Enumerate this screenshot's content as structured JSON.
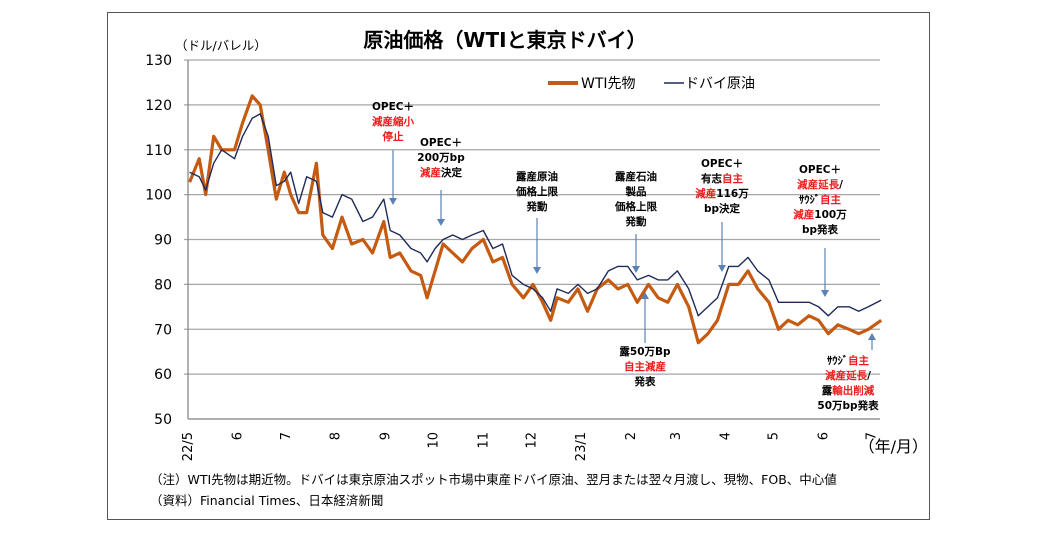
{
  "chart_data": {
    "type": "line",
    "title": "原油価格（WTIと東京ドバイ）",
    "ylabel": "（ドル/バレル）",
    "xlabel": "（年/月）",
    "ylim": [
      50,
      130
    ],
    "yticks": [
      50,
      60,
      70,
      80,
      90,
      100,
      110,
      120,
      130
    ],
    "grid": true,
    "legend_position": "top-right",
    "xtick_labels": [
      {
        "date": "2022-05-01",
        "label": "22/5"
      },
      {
        "date": "2022-06-01",
        "label": "6"
      },
      {
        "date": "2022-07-01",
        "label": "7"
      },
      {
        "date": "2022-08-01",
        "label": "8"
      },
      {
        "date": "2022-09-01",
        "label": "9"
      },
      {
        "date": "2022-10-01",
        "label": "10"
      },
      {
        "date": "2022-11-01",
        "label": "11"
      },
      {
        "date": "2022-12-01",
        "label": "12"
      },
      {
        "date": "2023-01-01",
        "label": "23/1"
      },
      {
        "date": "2023-02-01",
        "label": "2"
      },
      {
        "date": "2023-03-01",
        "label": "3"
      },
      {
        "date": "2023-04-01",
        "label": "4"
      },
      {
        "date": "2023-05-01",
        "label": "5"
      },
      {
        "date": "2023-06-01",
        "label": "6"
      },
      {
        "date": "2023-07-01",
        "label": "7"
      }
    ],
    "x": [
      "2022-05-02",
      "2022-05-08",
      "2022-05-12",
      "2022-05-17",
      "2022-05-22",
      "2022-05-30",
      "2022-06-04",
      "2022-06-10",
      "2022-06-15",
      "2022-06-20",
      "2022-06-25",
      "2022-06-30",
      "2022-07-04",
      "2022-07-09",
      "2022-07-14",
      "2022-07-20",
      "2022-07-24",
      "2022-07-30",
      "2022-08-05",
      "2022-08-11",
      "2022-08-18",
      "2022-08-24",
      "2022-08-31",
      "2022-09-04",
      "2022-09-10",
      "2022-09-17",
      "2022-09-23",
      "2022-09-27",
      "2022-10-02",
      "2022-10-07",
      "2022-10-13",
      "2022-10-19",
      "2022-10-25",
      "2022-11-01",
      "2022-11-07",
      "2022-11-13",
      "2022-11-19",
      "2022-11-26",
      "2022-12-02",
      "2022-12-08",
      "2022-12-13",
      "2022-12-17",
      "2022-12-24",
      "2022-12-30",
      "2023-01-05",
      "2023-01-11",
      "2023-01-18",
      "2023-01-24",
      "2023-01-30",
      "2023-02-05",
      "2023-02-12",
      "2023-02-18",
      "2023-02-24",
      "2023-03-02",
      "2023-03-09",
      "2023-03-15",
      "2023-03-21",
      "2023-03-27",
      "2023-04-03",
      "2023-04-09",
      "2023-04-15",
      "2023-04-21",
      "2023-04-28",
      "2023-05-04",
      "2023-05-10",
      "2023-05-16",
      "2023-05-23",
      "2023-05-29",
      "2023-06-04",
      "2023-06-10",
      "2023-06-17",
      "2023-06-23",
      "2023-06-29",
      "2023-07-07"
    ],
    "series": [
      {
        "name": "WTI先物",
        "color": "#c55a11",
        "values": [
          102.8,
          108,
          100,
          113,
          110,
          110,
          116,
          122,
          120,
          110,
          99,
          105,
          100,
          96,
          96,
          107,
          91,
          88,
          95,
          89,
          90,
          87,
          94,
          86,
          87,
          83,
          82,
          77,
          83,
          89,
          87,
          85,
          88,
          90,
          85,
          86,
          80,
          77,
          80,
          76,
          72,
          77,
          76,
          79,
          74,
          79,
          81,
          79,
          80,
          76,
          80,
          77,
          76,
          80,
          75,
          67,
          69,
          72,
          80,
          80,
          83,
          79,
          76,
          70,
          72,
          71,
          73,
          72,
          69,
          71,
          70,
          69,
          70,
          72
        ]
      },
      {
        "name": "ドバイ原油",
        "color": "#1f2a5a",
        "values": [
          105,
          104,
          101,
          107,
          110,
          108,
          113,
          117,
          118,
          113,
          102,
          103,
          105,
          98,
          104,
          103,
          96,
          95,
          100,
          99,
          94,
          95,
          99,
          92,
          91,
          88,
          87,
          85,
          88,
          90,
          91,
          90,
          91,
          92,
          88,
          89,
          82,
          80,
          79,
          77,
          74,
          79,
          78,
          80,
          78,
          79,
          83,
          84,
          84,
          81,
          82,
          81,
          81,
          83,
          79,
          73,
          75,
          77,
          84,
          84,
          86,
          83,
          81,
          76,
          76,
          76,
          76,
          75,
          73,
          75,
          75,
          74,
          75,
          76.5
        ]
      }
    ],
    "annotations": [
      {
        "lines": [
          [
            {
              "t": "OPEC＋",
              "red": false
            }
          ],
          [
            {
              "t": "減産縮小",
              "red": true
            }
          ],
          [
            {
              "t": "停止",
              "red": true
            }
          ]
        ]
      },
      {
        "lines": [
          [
            {
              "t": "OPEC＋",
              "red": false
            }
          ],
          [
            {
              "t": "200万bp",
              "red": false
            }
          ],
          [
            {
              "t": "減産",
              "red": true
            },
            {
              "t": "決定",
              "red": false
            }
          ]
        ]
      },
      {
        "lines": [
          [
            {
              "t": "露産原油",
              "red": false
            }
          ],
          [
            {
              "t": "価格上限",
              "red": false
            }
          ],
          [
            {
              "t": "発動",
              "red": false
            }
          ]
        ]
      },
      {
        "lines": [
          [
            {
              "t": "露産石油",
              "red": false
            }
          ],
          [
            {
              "t": "製品",
              "red": false
            }
          ],
          [
            {
              "t": "価格上限",
              "red": false
            }
          ],
          [
            {
              "t": "発動",
              "red": false
            }
          ]
        ]
      },
      {
        "lines": [
          [
            {
              "t": "OPEC＋",
              "red": false
            }
          ],
          [
            {
              "t": "有志",
              "red": false
            },
            {
              "t": "自主",
              "red": true
            }
          ],
          [
            {
              "t": "減産",
              "red": true
            },
            {
              "t": "116万",
              "red": false
            }
          ],
          [
            {
              "t": "bp決定",
              "red": false
            }
          ]
        ]
      },
      {
        "lines": [
          [
            {
              "t": "OPEC＋",
              "red": false
            }
          ],
          [
            {
              "t": "減産延長",
              "red": true
            },
            {
              "t": "/",
              "red": false
            }
          ],
          [
            {
              "t": "ｻｳｼﾞ",
              "red": false
            },
            {
              "t": "自主",
              "red": true
            }
          ],
          [
            {
              "t": "減産",
              "red": true
            },
            {
              "t": "100万",
              "red": false
            }
          ],
          [
            {
              "t": "bp発表",
              "red": false
            }
          ]
        ]
      },
      {
        "lines": [
          [
            {
              "t": "露50万Bp",
              "red": false
            }
          ],
          [
            {
              "t": "自主減産",
              "red": true
            }
          ],
          [
            {
              "t": "発表",
              "red": false
            }
          ]
        ]
      },
      {
        "lines": [
          [
            {
              "t": "ｻｳｼﾞ",
              "red": false
            },
            {
              "t": "自主",
              "red": true
            }
          ],
          [
            {
              "t": "減産延長",
              "red": true
            },
            {
              "t": "/",
              "red": false
            }
          ],
          [
            {
              "t": "露",
              "red": false
            },
            {
              "t": "輸出削減",
              "red": true
            }
          ],
          [
            {
              "t": "50万bp発表",
              "red": false
            }
          ]
        ]
      }
    ]
  },
  "footnotes": {
    "note": "（注）WTI先物は期近物。ドバイは東京原油スポット市場中東産ドバイ原油、翌月または翌々月渡し、現物、FOB、中心値",
    "source": "（資料）Financial Times、日本経済新聞"
  }
}
